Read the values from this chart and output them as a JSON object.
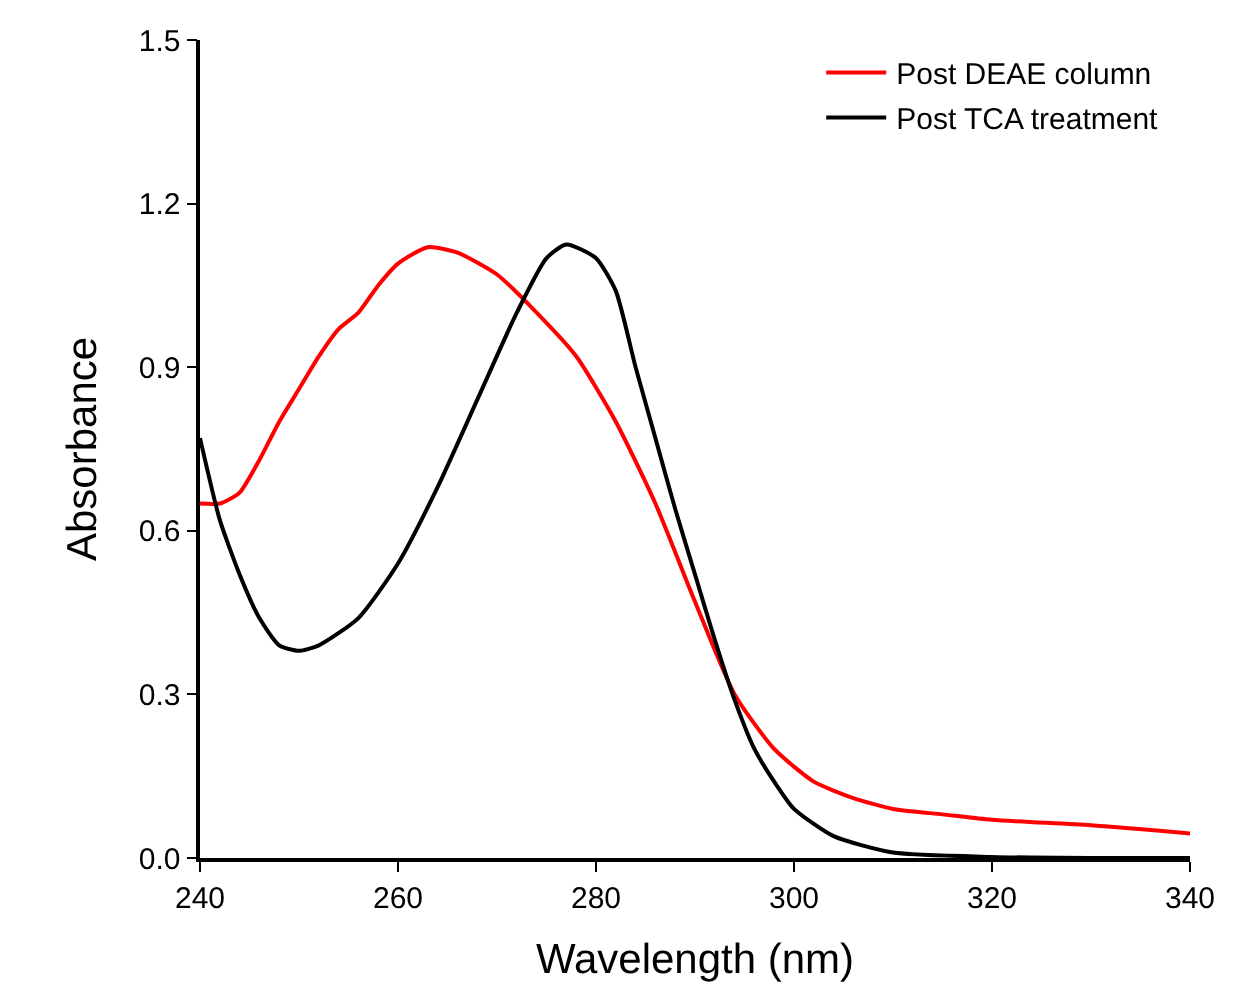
{
  "chart_data": {
    "type": "line",
    "xlabel": "Wavelength (nm)",
    "ylabel": "Absorbance",
    "xlim": [
      240,
      340
    ],
    "xticks": [
      240,
      260,
      280,
      300,
      320,
      340
    ],
    "ylim": [
      0,
      1.5
    ],
    "yticks": [
      {
        "value": 0,
        "label": "0.0"
      },
      0.3,
      0.6,
      0.9,
      1.2,
      1.5
    ],
    "legend": "top right",
    "marker": "none",
    "line_style": "solid",
    "series": [
      {
        "name": "Post DEAE column",
        "color": "#ff0000",
        "x": [
          240,
          242,
          244,
          246,
          248,
          250,
          252,
          254,
          256,
          258,
          260,
          263,
          266,
          270,
          274,
          278,
          282,
          286,
          290,
          294,
          298,
          302,
          306,
          310,
          315,
          320,
          330,
          340
        ],
        "values": [
          0.65,
          0.65,
          0.67,
          0.73,
          0.8,
          0.86,
          0.92,
          0.97,
          1.0,
          1.05,
          1.09,
          1.12,
          1.11,
          1.07,
          1.0,
          0.92,
          0.8,
          0.65,
          0.47,
          0.3,
          0.2,
          0.14,
          0.11,
          0.09,
          0.08,
          0.07,
          0.06,
          0.045
        ]
      },
      {
        "name": "Post TCA treatment",
        "color": "#000000",
        "x": [
          240,
          242,
          244,
          246,
          248,
          250,
          252,
          256,
          260,
          264,
          268,
          272,
          275,
          277,
          280,
          282,
          284,
          286,
          288,
          290,
          292,
          294,
          296,
          298,
          300,
          304,
          310,
          320,
          330,
          340
        ],
        "values": [
          0.77,
          0.62,
          0.52,
          0.44,
          0.39,
          0.38,
          0.39,
          0.44,
          0.54,
          0.68,
          0.84,
          1.0,
          1.1,
          1.125,
          1.1,
          1.04,
          0.9,
          0.77,
          0.64,
          0.52,
          0.4,
          0.29,
          0.2,
          0.14,
          0.09,
          0.04,
          0.01,
          0.002,
          0.0,
          0.0
        ]
      }
    ]
  }
}
